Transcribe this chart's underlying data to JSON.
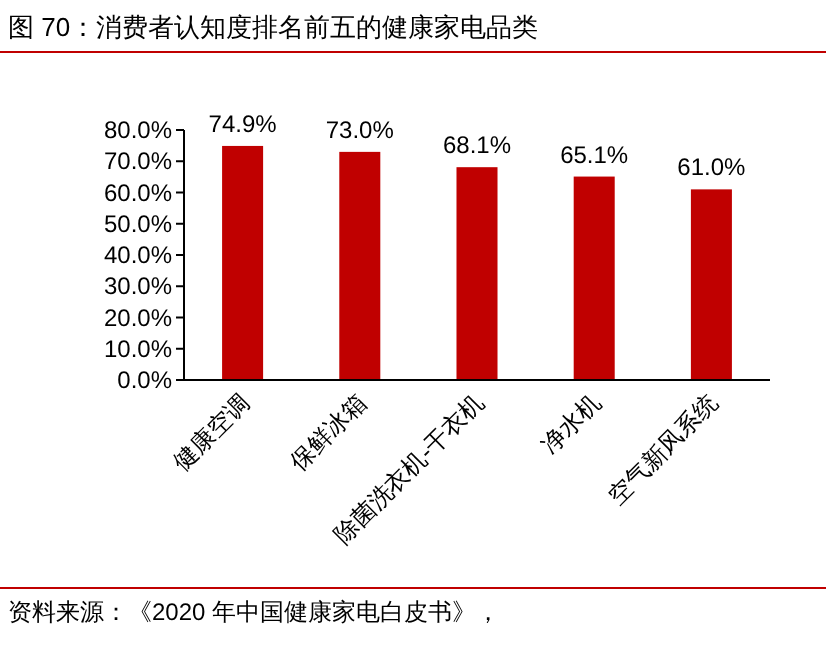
{
  "chart_data": {
    "type": "bar",
    "title": "图 70：消费者认知度排名前五的健康家电品类",
    "categories": [
      "健康空调",
      "保鲜冰箱",
      "除菌洗衣机-干衣机",
      "净水机",
      "空气新风系统"
    ],
    "values": [
      74.9,
      73.0,
      68.1,
      65.1,
      61.0
    ],
    "value_labels": [
      "74.9%",
      "73.0%",
      "68.1%",
      "65.1%",
      "61.0%"
    ],
    "color": "#c00000",
    "ylim": [
      0,
      80
    ],
    "yticks": [
      {
        "value": 0,
        "label": "0.0%"
      },
      {
        "value": 10,
        "label": "10.0%"
      },
      {
        "value": 20,
        "label": "20.0%"
      },
      {
        "value": 30,
        "label": "30.0%"
      },
      {
        "value": 40,
        "label": "40.0%"
      },
      {
        "value": 50,
        "label": "50.0%"
      },
      {
        "value": 60,
        "label": "60.0%"
      },
      {
        "value": 70,
        "label": "70.0%"
      },
      {
        "value": 80,
        "label": "80.0%"
      }
    ],
    "annotations": [
      "资料来源：《2020 年中国健康家电白皮书》，"
    ]
  }
}
